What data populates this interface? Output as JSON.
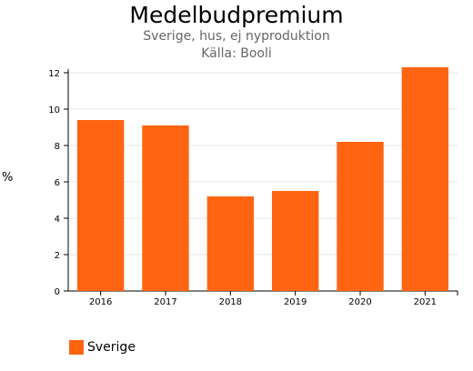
{
  "chart_data": {
    "type": "bar",
    "title": "Medelbudpremium",
    "subtitles": [
      "Sverige, hus, ej nyproduktion",
      "Källa: Booli"
    ],
    "ylabel": "%",
    "xlabel": "",
    "categories": [
      "2016",
      "2017",
      "2018",
      "2019",
      "2020",
      "2021"
    ],
    "series": [
      {
        "name": "Sverige",
        "values": [
          9.4,
          9.1,
          5.2,
          5.5,
          8.2,
          12.3
        ]
      }
    ],
    "ylim": [
      0,
      12.2
    ],
    "yticks": [
      "0",
      "2",
      "4",
      "6",
      "8",
      "10",
      "12"
    ],
    "grid": true,
    "legend": "bottom-left",
    "colors": {
      "bar": "#ff6411",
      "grid": "#e6e6e6",
      "axis": "#000000"
    }
  }
}
